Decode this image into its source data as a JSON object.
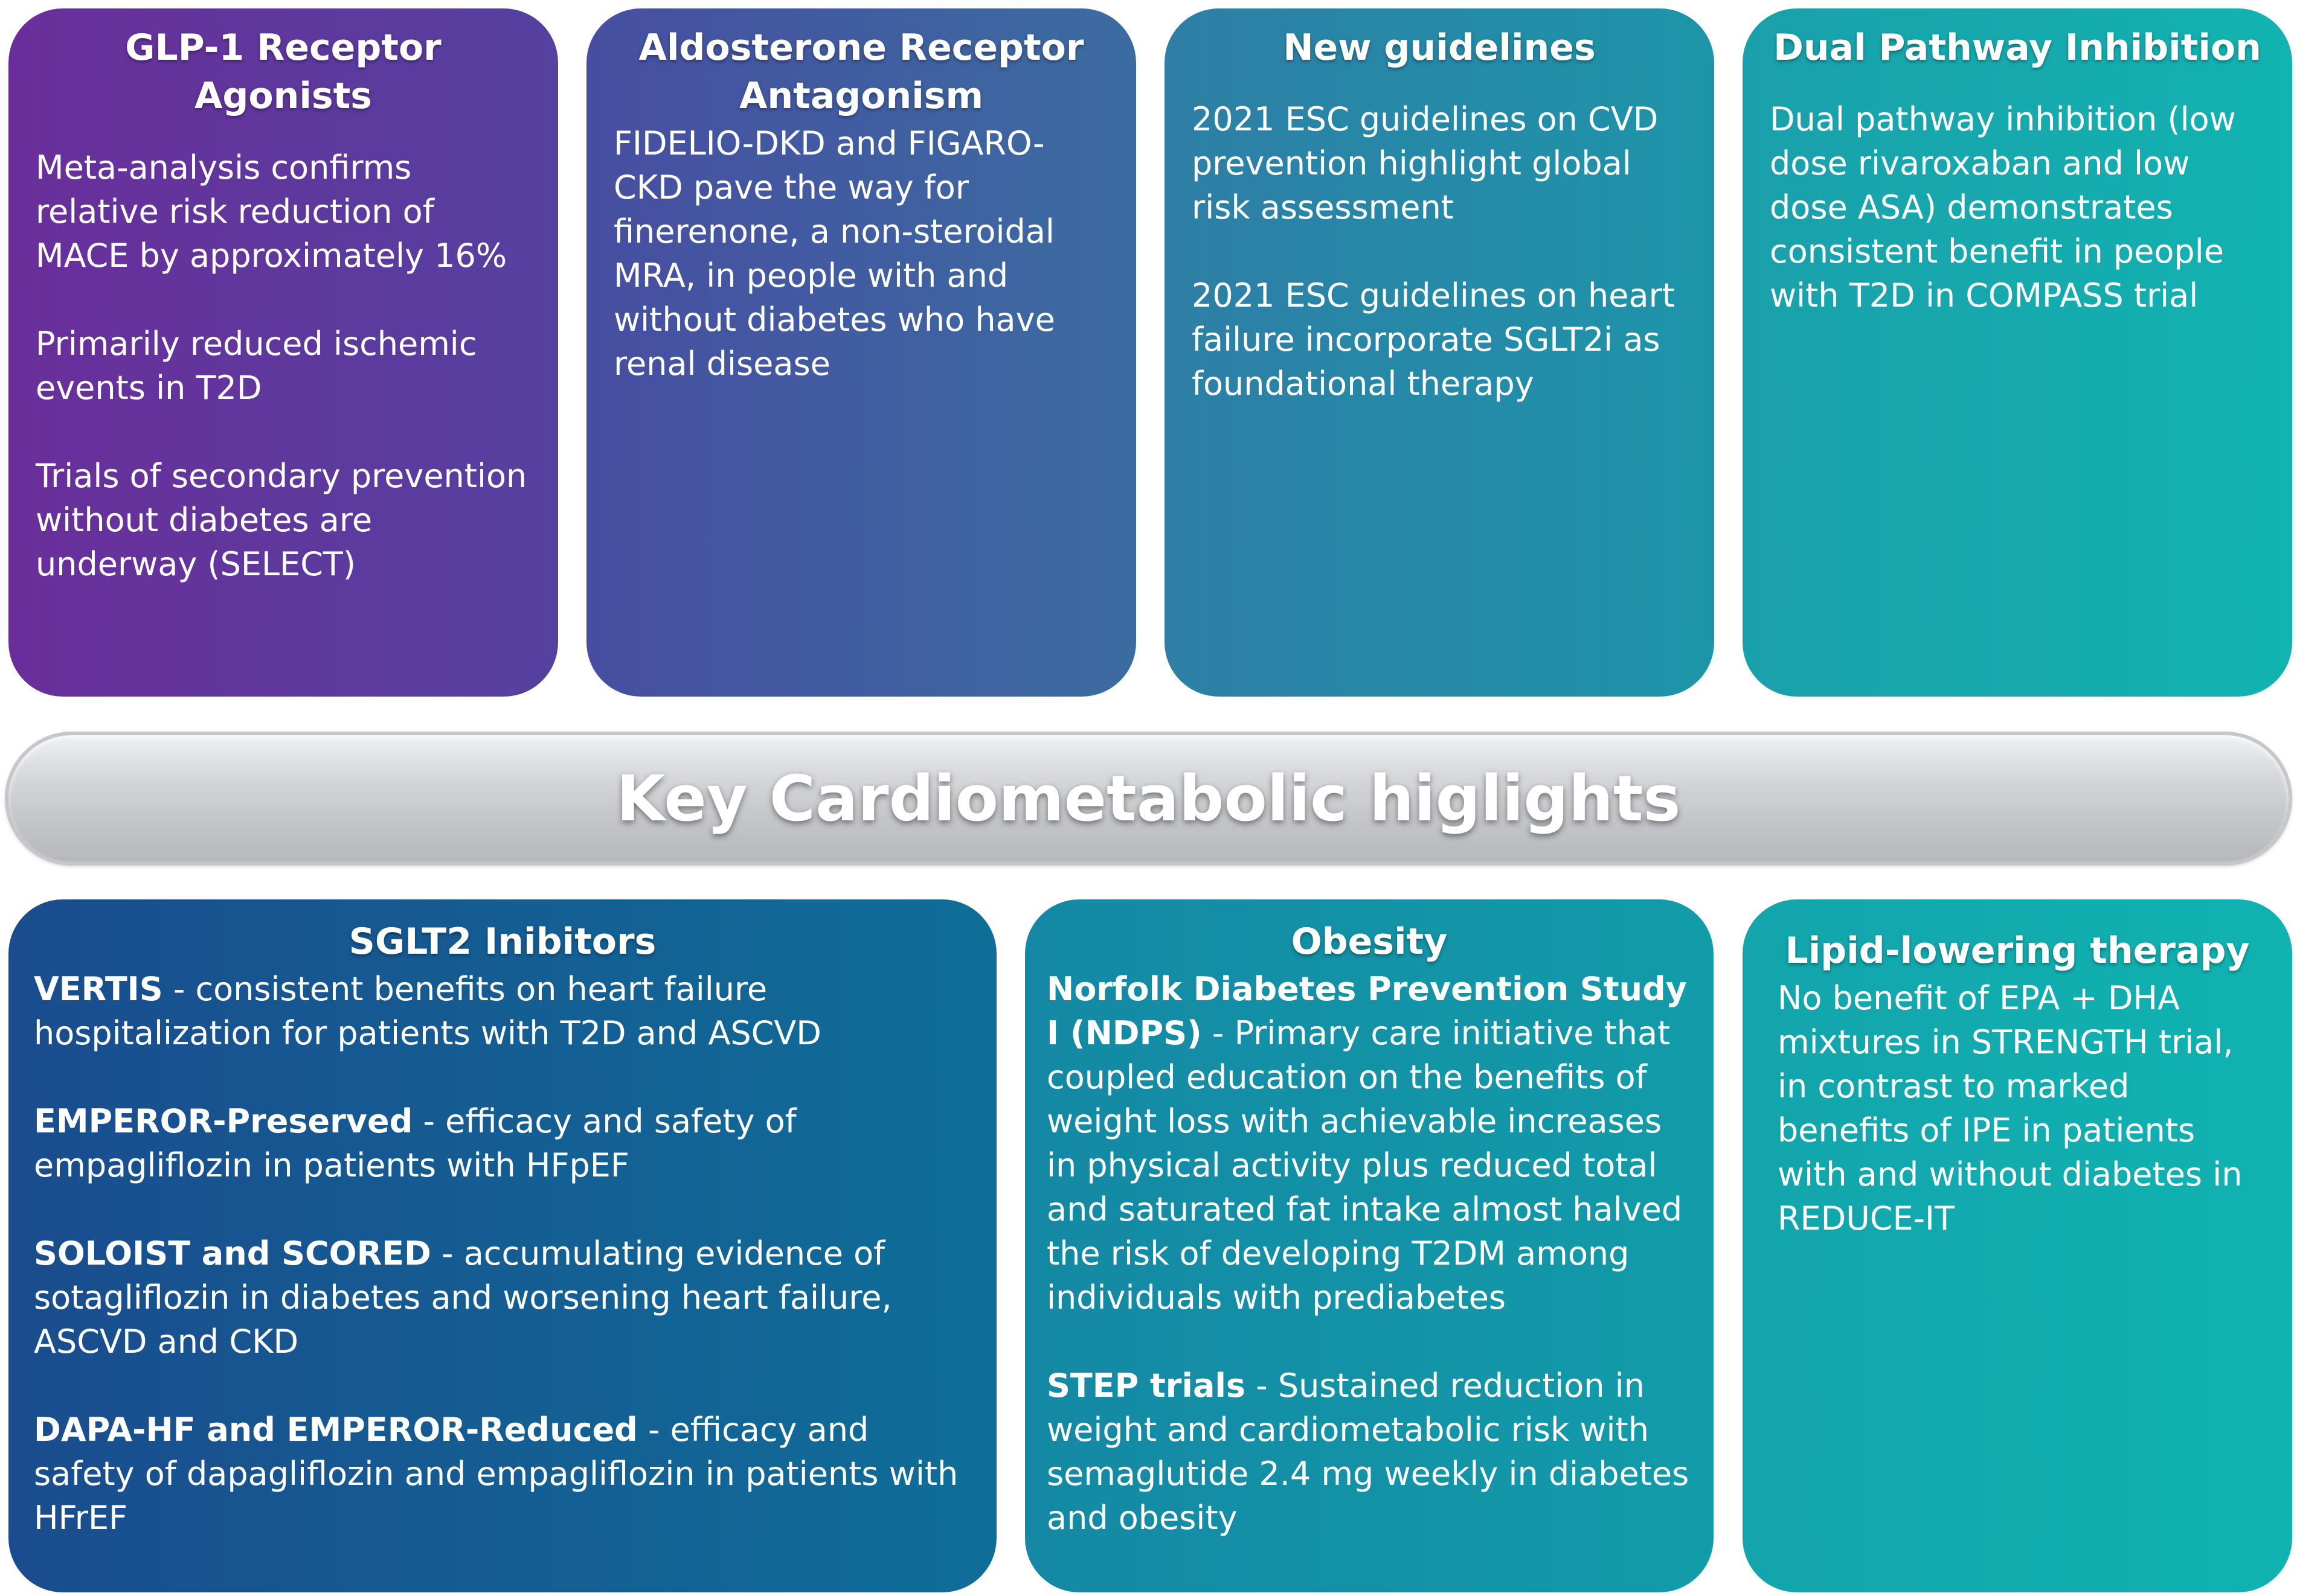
{
  "top_cards": [
    {
      "title": "GLP-1 Receptor Agonists",
      "paragraphs": [
        "Meta-analysis confirms relative risk reduction of MACE by approximately 16%",
        "Primarily reduced ischemic events in T2D",
        "Trials of secondary prevention without diabetes are underway (SELECT)"
      ]
    },
    {
      "title": "Aldosterone Receptor Antagonism",
      "paragraphs": [
        "FIDELIO-DKD and FIGARO-CKD pave the way for finerenone, a non-steroidal MRA, in people with and without diabetes who have renal disease"
      ]
    },
    {
      "title": "New guidelines",
      "paragraphs": [
        "2021 ESC guidelines on CVD prevention highlight global risk assessment",
        "2021 ESC guidelines on heart failure incorporate SGLT2i as foundational therapy"
      ]
    },
    {
      "title": "Dual Pathway Inhibition",
      "paragraphs": [
        "Dual pathway inhibition (low dose rivaroxaban and low dose ASA) demonstrates consistent benefit in people with T2D in COMPASS trial"
      ]
    }
  ],
  "banner": {
    "text": "Key Cardiometabolic higlights"
  },
  "bottom_cards": {
    "sglt2": {
      "title": "SGLT2 Inibitors",
      "items": [
        {
          "bold": "VERTIS",
          "text": " - consistent benefits on heart failure hospitalization for patients with T2D and ASCVD"
        },
        {
          "bold": "EMPEROR-Preserved",
          "text": " - efficacy and safety of empagliflozin in patients with HFpEF"
        },
        {
          "bold": "SOLOIST and SCORED",
          "text": " - accumulating evidence of sotagliflozin in diabetes and worsening heart failure, ASCVD and CKD"
        },
        {
          "bold": "DAPA-HF and EMPEROR-Reduced",
          "text": " - efficacy and safety of dapagliflozin and empagliflozin in patients with HFrEF"
        }
      ]
    },
    "obesity": {
      "title": "Obesity",
      "items": [
        {
          "bold": "Norfolk Diabetes Prevention Study I (NDPS)",
          "text": " - Primary care initiative that coupled education on the benefits of weight loss with achievable increases in physical activity plus reduced total and saturated fat intake almost halved the risk of developing T2DM among individuals with prediabetes"
        },
        {
          "bold": "STEP trials",
          "text": " - Sustained reduction in weight and cardiometabolic risk with semaglutide 2.4 mg weekly in diabetes and obesity"
        }
      ]
    },
    "lipid": {
      "title": "Lipid-lowering therapy",
      "paragraphs": [
        "No benefit of EPA + DHA mixtures in STRENGTH trial, in contrast to marked benefits of IPE in patients with and without diabetes in REDUCE-IT"
      ]
    }
  }
}
